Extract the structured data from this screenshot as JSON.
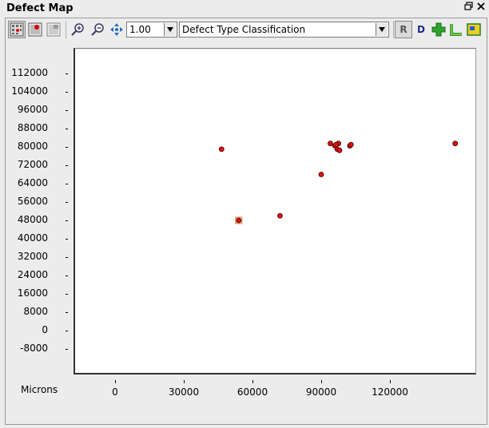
{
  "window": {
    "title": "Defect Map",
    "restore_icon": "restore-icon",
    "close_icon": "close-icon"
  },
  "toolbar": {
    "zoom_value": "1.00",
    "classification_value": "Defect Type Classification",
    "r_label": "R",
    "d_label": "D",
    "icons": [
      "grid-view-icon",
      "red-view-icon",
      "gray-view-icon",
      "zoom-in-icon",
      "zoom-out-icon",
      "pan-icon",
      "add-icon",
      "ruler-icon",
      "color-map-icon"
    ]
  },
  "colors": {
    "defect_fill": "#e01010",
    "defect_stroke": "#400000",
    "selected_box": "#d08040"
  },
  "chart_data": {
    "type": "scatter",
    "units_label": "Microns",
    "x_ticks": [
      "0",
      "30000",
      "60000",
      "90000",
      "120000"
    ],
    "y_ticks": [
      "112000",
      "104000",
      "96000",
      "88000",
      "80000",
      "72000",
      "64000",
      "56000",
      "48000",
      "40000",
      "32000",
      "24000",
      "16000",
      "8000",
      "0",
      "-8000"
    ],
    "points": [
      {
        "x": 46500,
        "y": 79000
      },
      {
        "x": 54000,
        "y": 48000,
        "selected": true
      },
      {
        "x": 72000,
        "y": 50000
      },
      {
        "x": 90000,
        "y": 68000
      },
      {
        "x": 94000,
        "y": 81500
      },
      {
        "x": 96000,
        "y": 80500
      },
      {
        "x": 97000,
        "y": 79000
      },
      {
        "x": 97500,
        "y": 81500
      },
      {
        "x": 98000,
        "y": 78500
      },
      {
        "x": 96500,
        "y": 81000
      },
      {
        "x": 102500,
        "y": 80500
      },
      {
        "x": 103000,
        "y": 81000
      },
      {
        "x": 148500,
        "y": 81500
      }
    ]
  }
}
